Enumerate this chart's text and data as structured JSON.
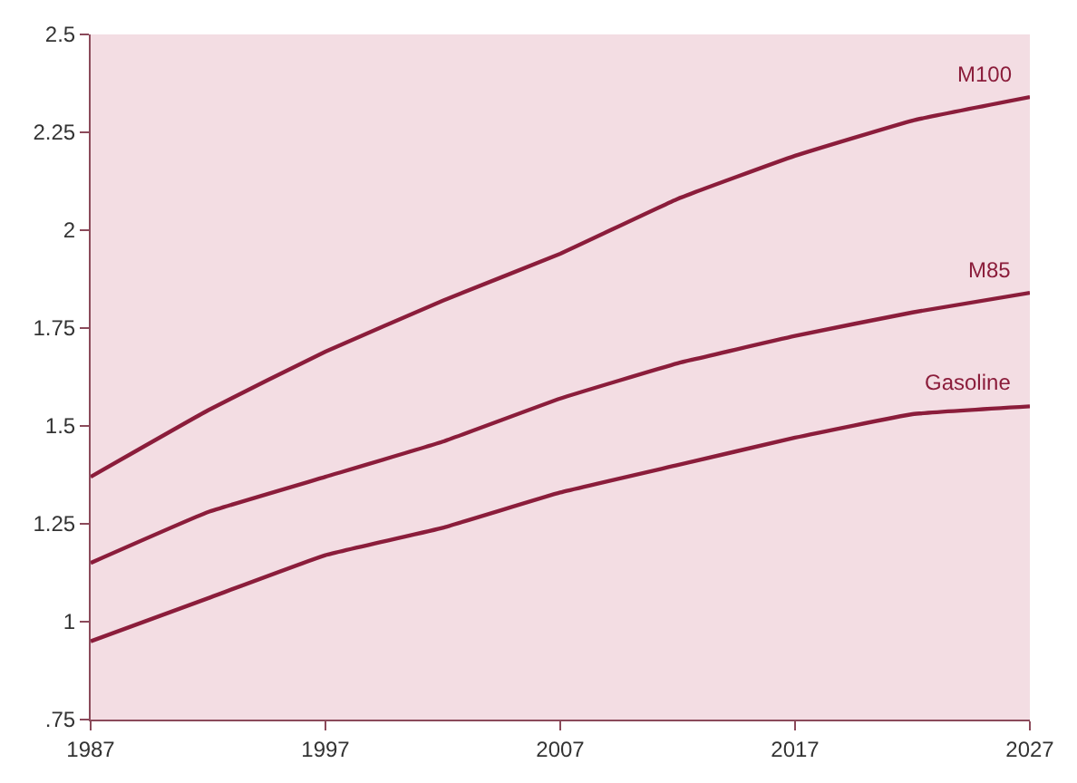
{
  "chart_data": {
    "type": "line",
    "x": [
      1987,
      1992,
      1997,
      2002,
      2007,
      2012,
      2017,
      2022,
      2027
    ],
    "series": [
      {
        "name": "M100",
        "color": "#8b1d3b",
        "values": [
          1.37,
          1.54,
          1.69,
          1.82,
          1.94,
          2.08,
          2.19,
          2.28,
          2.34
        ]
      },
      {
        "name": "M85",
        "color": "#8b1d3b",
        "values": [
          1.15,
          1.28,
          1.37,
          1.46,
          1.57,
          1.66,
          1.73,
          1.79,
          1.84
        ]
      },
      {
        "name": "Gasoline",
        "color": "#8b1d3b",
        "values": [
          0.95,
          1.06,
          1.17,
          1.24,
          1.33,
          1.4,
          1.47,
          1.53,
          1.55
        ]
      }
    ],
    "xlim": [
      1987,
      2027
    ],
    "xticks": [
      1987,
      1997,
      2007,
      2017,
      2027
    ],
    "ylim": [
      0.75,
      2.5
    ],
    "yticks": [
      {
        "value": 0.75,
        "label": ".75"
      },
      1,
      1.25,
      1.5,
      1.75,
      2,
      2.25,
      2.5
    ],
    "grid": false,
    "legend": false,
    "marker": "none",
    "line_style": "solid"
  }
}
